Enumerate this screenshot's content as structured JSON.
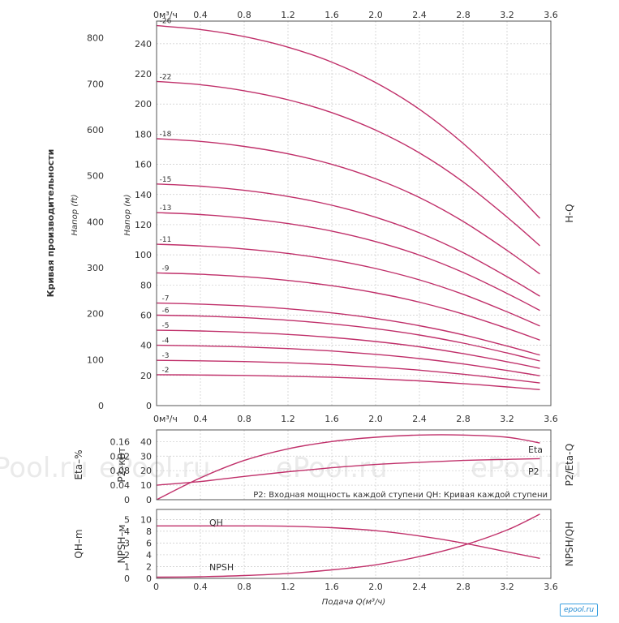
{
  "colors": {
    "curve": "#c0306a",
    "grid": "#c9c9c9",
    "frame": "#555555",
    "watermark": "#d8d8d8"
  },
  "watermarks": [
    "Pool.ru",
    "ePool.ru",
    "ePool.ru",
    "ePool.ru"
  ],
  "logo_text": "epool.ru",
  "chart_data": [
    {
      "type": "line",
      "id": "hq",
      "title": "H-Q",
      "side_title": "Кривая производительности",
      "ylabel": "Напор (м)",
      "ylabel2": "Напор (ft)",
      "x_unit_label": "0м³/ч",
      "x_ticks": [
        "0м³/ч",
        "0.4",
        "0.8",
        "1.2",
        "1.6",
        "2.0",
        "2.4",
        "2.8",
        "3.2",
        "3.6"
      ],
      "xlim": [
        0,
        3.6
      ],
      "ylim": [
        0,
        255
      ],
      "y_ticks": [
        "0",
        "20",
        "40",
        "60",
        "80",
        "100",
        "120",
        "140",
        "160",
        "180",
        "200",
        "220",
        "240"
      ],
      "ylim2": [
        0,
        836.6
      ],
      "y2_ticks": [
        "0",
        "100",
        "200",
        "300",
        "400",
        "500",
        "600",
        "700",
        "800"
      ],
      "grid": true,
      "stage_heads_at_zero": [
        20.5,
        30,
        40,
        50,
        60,
        68,
        88,
        107,
        128,
        147,
        177,
        215,
        252
      ],
      "series": [
        {
          "name": "-2",
          "x": [
            0,
            0.4,
            0.8,
            1.2,
            1.6,
            2.0,
            2.4,
            2.8,
            3.2,
            3.5
          ],
          "values": [
            20.5,
            20.3,
            20.0,
            19.5,
            18.8,
            17.8,
            16.4,
            14.6,
            12.4,
            10.6
          ]
        },
        {
          "name": "-3",
          "x": [
            0,
            0.4,
            0.8,
            1.2,
            1.6,
            2.0,
            2.4,
            2.8,
            3.2,
            3.5
          ],
          "values": [
            30.0,
            29.7,
            29.2,
            28.4,
            27.2,
            25.6,
            23.5,
            20.8,
            17.6,
            15.0
          ]
        },
        {
          "name": "-4",
          "x": [
            0,
            0.4,
            0.8,
            1.2,
            1.6,
            2.0,
            2.4,
            2.8,
            3.2,
            3.5
          ],
          "values": [
            40.0,
            39.6,
            38.9,
            37.8,
            36.2,
            34.0,
            31.2,
            27.6,
            23.3,
            19.8
          ]
        },
        {
          "name": "-5",
          "x": [
            0,
            0.4,
            0.8,
            1.2,
            1.6,
            2.0,
            2.4,
            2.8,
            3.2,
            3.5
          ],
          "values": [
            50.0,
            49.5,
            48.6,
            47.2,
            45.2,
            42.5,
            39.0,
            34.5,
            29.1,
            24.7
          ]
        },
        {
          "name": "-6",
          "x": [
            0,
            0.4,
            0.8,
            1.2,
            1.6,
            2.0,
            2.4,
            2.8,
            3.2,
            3.5
          ],
          "values": [
            60.0,
            59.4,
            58.3,
            56.6,
            54.2,
            51.0,
            46.8,
            41.4,
            34.9,
            29.6
          ]
        },
        {
          "name": "-7",
          "x": [
            0,
            0.4,
            0.8,
            1.2,
            1.6,
            2.0,
            2.4,
            2.8,
            3.2,
            3.5
          ],
          "values": [
            68.0,
            67.3,
            66.1,
            64.2,
            61.5,
            57.8,
            53.0,
            46.9,
            39.5,
            33.5
          ]
        },
        {
          "name": "-9",
          "x": [
            0,
            0.4,
            0.8,
            1.2,
            1.6,
            2.0,
            2.4,
            2.8,
            3.2,
            3.5
          ],
          "values": [
            88.0,
            87.1,
            85.5,
            83.0,
            79.5,
            74.8,
            68.6,
            60.7,
            51.2,
            43.4
          ]
        },
        {
          "name": "-11",
          "x": [
            0,
            0.4,
            0.8,
            1.2,
            1.6,
            2.0,
            2.4,
            2.8,
            3.2,
            3.5
          ],
          "values": [
            107.0,
            105.9,
            103.9,
            100.9,
            96.7,
            90.9,
            83.4,
            73.8,
            62.2,
            52.8
          ]
        },
        {
          "name": "-13",
          "x": [
            0,
            0.4,
            0.8,
            1.2,
            1.6,
            2.0,
            2.4,
            2.8,
            3.2,
            3.5
          ],
          "values": [
            128.0,
            126.7,
            124.3,
            120.7,
            115.7,
            108.8,
            99.8,
            88.3,
            74.4,
            63.1
          ]
        },
        {
          "name": "-15",
          "x": [
            0,
            0.4,
            0.8,
            1.2,
            1.6,
            2.0,
            2.4,
            2.8,
            3.2,
            3.5
          ],
          "values": [
            147.0,
            145.5,
            142.8,
            138.7,
            132.9,
            124.9,
            114.6,
            101.4,
            85.5,
            72.5
          ]
        },
        {
          "name": "-18",
          "x": [
            0,
            0.4,
            0.8,
            1.2,
            1.6,
            2.0,
            2.4,
            2.8,
            3.2,
            3.5
          ],
          "values": [
            177.0,
            175.2,
            171.9,
            167.0,
            160.0,
            150.4,
            138.0,
            122.1,
            102.9,
            87.3
          ]
        },
        {
          "name": "-22",
          "x": [
            0,
            0.4,
            0.8,
            1.2,
            1.6,
            2.0,
            2.4,
            2.8,
            3.2,
            3.5
          ],
          "values": [
            215.0,
            212.8,
            208.8,
            202.8,
            194.3,
            182.7,
            167.6,
            148.3,
            125.0,
            106.0
          ]
        },
        {
          "name": "-26",
          "x": [
            0,
            0.4,
            0.8,
            1.2,
            1.6,
            2.0,
            2.4,
            2.8,
            3.2,
            3.5
          ],
          "values": [
            252.0,
            249.4,
            244.7,
            237.7,
            227.8,
            214.2,
            196.5,
            173.8,
            146.5,
            124.2
          ]
        }
      ]
    },
    {
      "type": "line",
      "id": "p2eta",
      "title": "P2/Eta-Q",
      "ylabel": "Eta–%",
      "ylabel2": "P2–кВт",
      "x_ticks": [
        "0м³/ч",
        "0.4",
        "0.8",
        "1.2",
        "1.6",
        "2.0",
        "2.4",
        "2.8",
        "3.2",
        "3.6"
      ],
      "xlim": [
        0,
        3.6
      ],
      "ylim": [
        0,
        48
      ],
      "y_ticks": [
        "0",
        "10",
        "20",
        "30",
        "40"
      ],
      "ylim2": [
        0,
        0.192
      ],
      "y2_ticks": [
        "0",
        "0.04",
        "0.08",
        "0.12",
        "0.16"
      ],
      "note": "P2: Входная мощность каждой ступени QH: Кривая каждой ступени",
      "series": [
        {
          "name": "Eta",
          "axis": "left",
          "x": [
            0,
            0.4,
            0.8,
            1.2,
            1.6,
            2.0,
            2.4,
            2.8,
            3.2,
            3.5
          ],
          "values": [
            0,
            15,
            27,
            35,
            40,
            43,
            44.5,
            44.5,
            43,
            39
          ]
        },
        {
          "name": "P2",
          "axis": "right",
          "x": [
            0,
            0.4,
            0.8,
            1.2,
            1.6,
            2.0,
            2.4,
            2.8,
            3.2,
            3.5
          ],
          "values": [
            0.04,
            0.05,
            0.064,
            0.077,
            0.088,
            0.097,
            0.103,
            0.108,
            0.111,
            0.113
          ]
        }
      ]
    },
    {
      "type": "line",
      "id": "npsh",
      "title": "NPSH/QH",
      "ylabel": "QH–m",
      "ylabel2": "NPSH–м",
      "xlabel": "Подача Q(м³/ч)",
      "x_ticks": [
        "0",
        "0.4",
        "0.8",
        "1.2",
        "1.6",
        "2.0",
        "2.4",
        "2.8",
        "3.2",
        "3.6"
      ],
      "xlim": [
        0,
        3.6
      ],
      "ylim": [
        0,
        11.7
      ],
      "y_ticks": [
        "0",
        "2",
        "4",
        "6",
        "8",
        "10"
      ],
      "ylim2": [
        0,
        5.85
      ],
      "y2_ticks": [
        "0",
        "1",
        "2",
        "3",
        "4",
        "5"
      ],
      "series": [
        {
          "name": "QH",
          "axis": "left",
          "x": [
            0,
            0.4,
            0.8,
            1.2,
            1.6,
            2.0,
            2.4,
            2.8,
            3.2,
            3.5
          ],
          "values": [
            8.9,
            8.9,
            8.9,
            8.85,
            8.6,
            8.1,
            7.2,
            6.0,
            4.5,
            3.4
          ]
        },
        {
          "name": "NPSH",
          "axis": "right",
          "x": [
            0,
            0.4,
            0.8,
            1.2,
            1.6,
            2.0,
            2.4,
            2.8,
            3.2,
            3.5
          ],
          "values": [
            0.1,
            0.14,
            0.24,
            0.42,
            0.72,
            1.15,
            1.85,
            2.8,
            4.1,
            5.45
          ]
        }
      ]
    }
  ]
}
